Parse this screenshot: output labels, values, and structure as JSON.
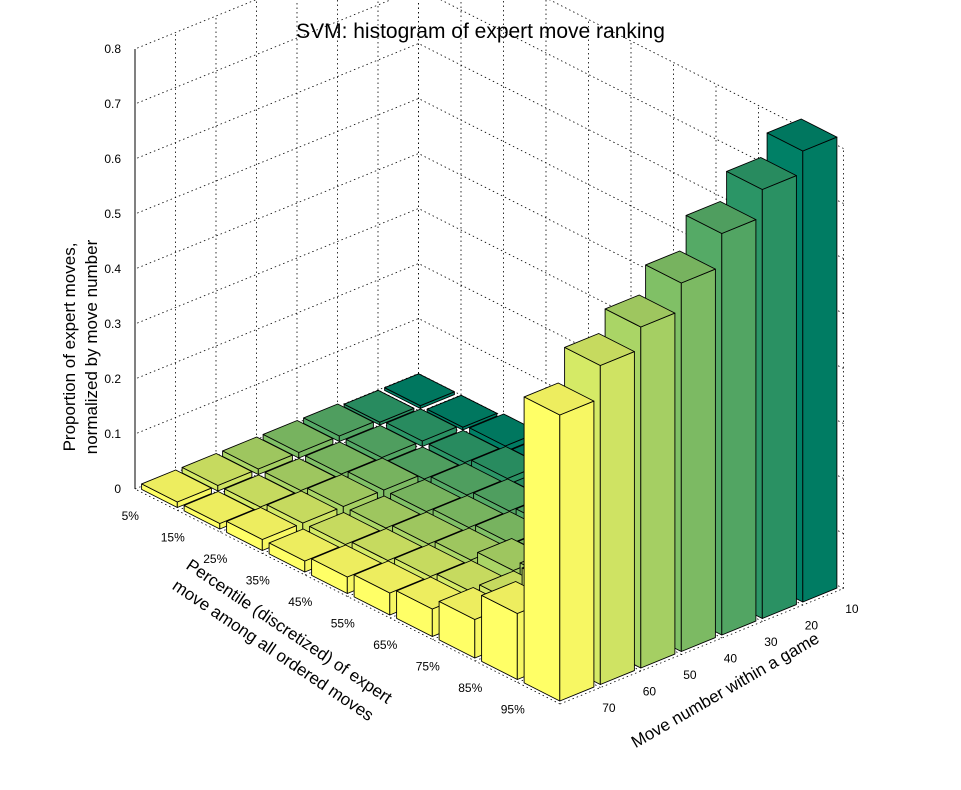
{
  "chart_data": {
    "type": "bar3d",
    "title": "SVM: histogram of expert move ranking",
    "zlabel_line1": "Proportion of expert moves,",
    "zlabel_line2": "normalized by move number",
    "xlabel_line1": "Percentile (discretized) of expert",
    "xlabel_line2": "move among all ordered moves",
    "ylabel": "Move number within a game",
    "percentiles": [
      "95%",
      "85%",
      "75%",
      "65%",
      "55%",
      "45%",
      "35%",
      "25%",
      "15%",
      "5%"
    ],
    "move_numbers": [
      70,
      60,
      50,
      40,
      30,
      20,
      10
    ],
    "zticks": [
      "0",
      "0.1",
      "0.2",
      "0.3",
      "0.4",
      "0.5",
      "0.6",
      "0.7",
      "0.8"
    ],
    "zlim": [
      0,
      0.8
    ],
    "colormap": "summer",
    "colormap_range": [
      "#ffff66",
      "#008066"
    ],
    "grid": true,
    "series": [
      {
        "name": "70",
        "values": [
          0.52,
          0.12,
          0.07,
          0.05,
          0.04,
          0.03,
          0.02,
          0.02,
          0.01,
          0.01
        ]
      },
      {
        "name": "60",
        "values": [
          0.58,
          0.14,
          0.07,
          0.05,
          0.04,
          0.03,
          0.02,
          0.02,
          0.01,
          0.01
        ]
      },
      {
        "name": "50",
        "values": [
          0.62,
          0.15,
          0.08,
          0.06,
          0.04,
          0.03,
          0.02,
          0.02,
          0.01,
          0.01
        ]
      },
      {
        "name": "40",
        "values": [
          0.67,
          0.16,
          0.08,
          0.05,
          0.04,
          0.03,
          0.02,
          0.02,
          0.01,
          0.01
        ]
      },
      {
        "name": "30",
        "values": [
          0.73,
          0.16,
          0.08,
          0.05,
          0.04,
          0.03,
          0.02,
          0.01,
          0.01,
          0.01
        ]
      },
      {
        "name": "20",
        "values": [
          0.78,
          0.15,
          0.07,
          0.05,
          0.03,
          0.02,
          0.02,
          0.01,
          0.01,
          0.005
        ]
      },
      {
        "name": "10",
        "values": [
          0.82,
          0.14,
          0.07,
          0.04,
          0.03,
          0.02,
          0.01,
          0.01,
          0.005,
          0.005
        ]
      }
    ]
  }
}
